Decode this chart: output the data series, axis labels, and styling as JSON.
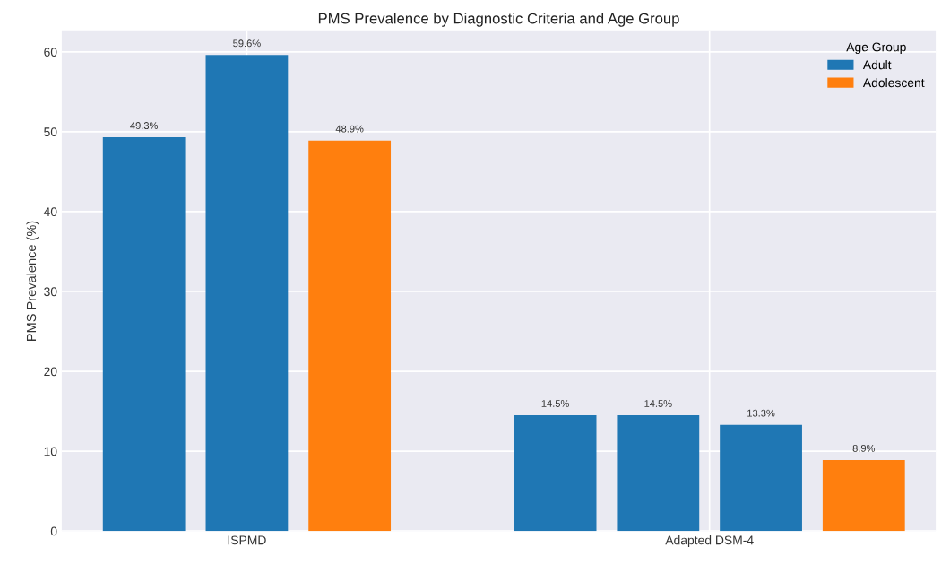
{
  "chart_data": {
    "type": "bar",
    "title": "PMS Prevalence by Diagnostic Criteria and Age Group",
    "ylabel": "PMS Prevalence (%)",
    "legend_title": "Age Group",
    "categories": [
      null,
      null,
      "ISPMD",
      null,
      null,
      null,
      null,
      null,
      null,
      null,
      null,
      "Adapted DSM-4",
      null,
      null,
      null
    ],
    "ylim": [
      0,
      62.6
    ],
    "yticks": [
      0,
      10,
      20,
      30,
      40,
      50,
      60
    ],
    "series": [
      {
        "name": "Adult",
        "color": "#1f77b4",
        "values": [
          49.3,
          null,
          59.6,
          null,
          null,
          null,
          null,
          null,
          14.5,
          null,
          14.5,
          null,
          13.3,
          null,
          null
        ],
        "value_labels": [
          "49.3%",
          null,
          "59.6%",
          null,
          null,
          null,
          null,
          null,
          "14.5%",
          null,
          "14.5%",
          null,
          "13.3%",
          null,
          null
        ]
      },
      {
        "name": "Adolescent",
        "color": "#ff7f0e",
        "values": [
          null,
          null,
          null,
          null,
          48.9,
          null,
          null,
          null,
          null,
          null,
          null,
          null,
          null,
          null,
          8.9
        ],
        "value_labels": [
          null,
          null,
          null,
          null,
          "48.9%",
          null,
          null,
          null,
          null,
          null,
          null,
          null,
          null,
          null,
          "8.9%"
        ]
      }
    ],
    "grid": true,
    "legend": "top right"
  }
}
